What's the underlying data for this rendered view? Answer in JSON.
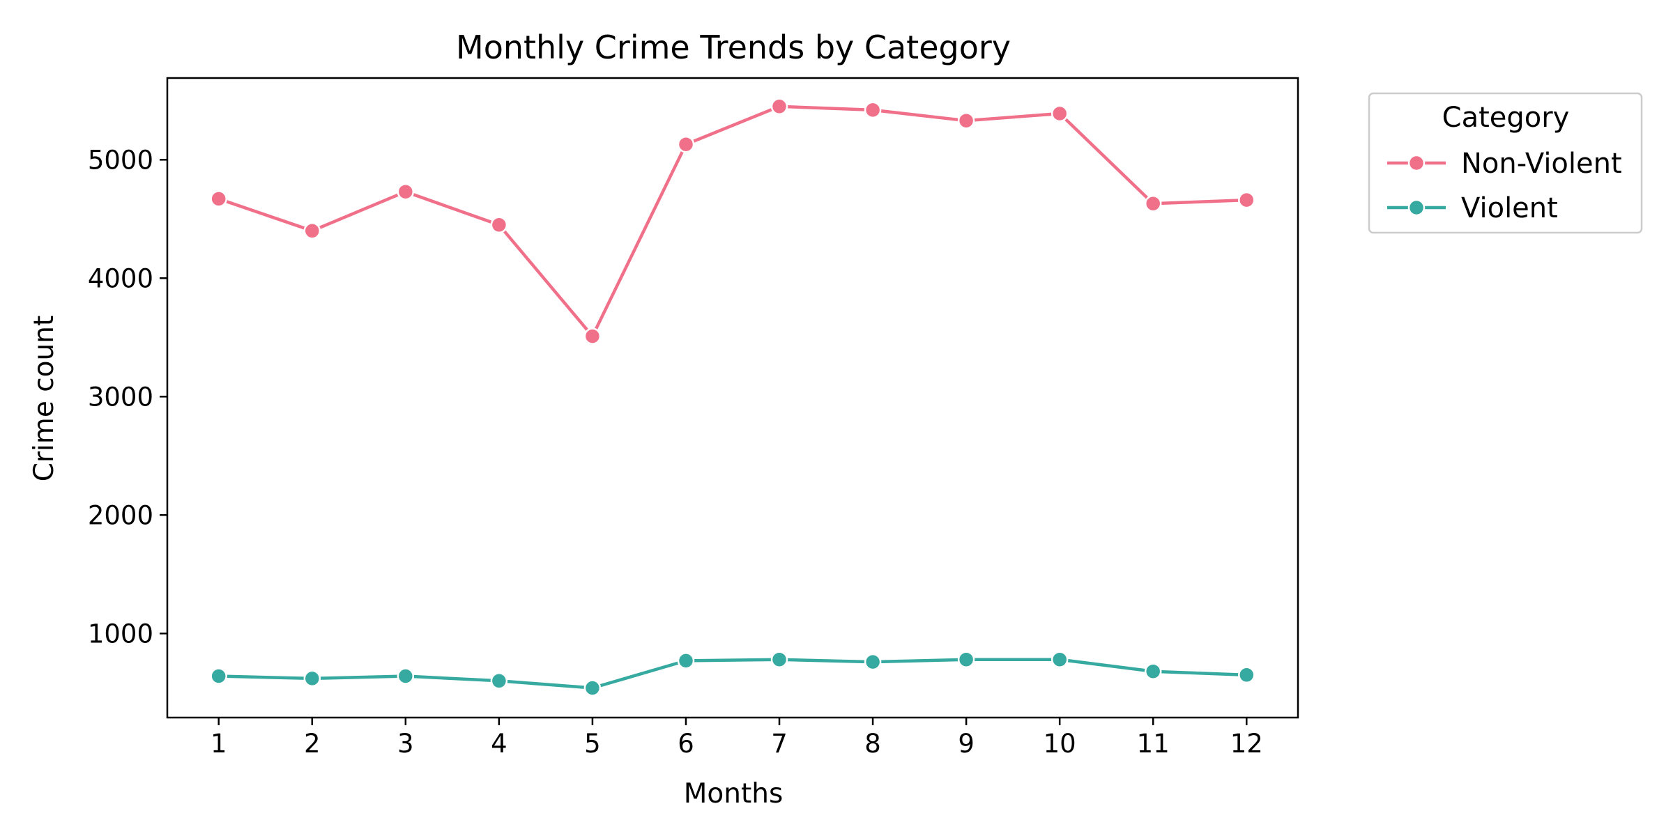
{
  "chart_data": {
    "type": "line",
    "title": "Monthly Crime Trends by Category",
    "xlabel": "Months",
    "ylabel": "Crime count",
    "x": [
      1,
      2,
      3,
      4,
      5,
      6,
      7,
      8,
      9,
      10,
      11,
      12
    ],
    "xlim": [
      0.45,
      12.55
    ],
    "ylim": [
      290,
      5690
    ],
    "yticks": [
      1000,
      2000,
      3000,
      4000,
      5000
    ],
    "grid": false,
    "legend": {
      "title": "Category",
      "placement": "outside-top-right"
    },
    "series": [
      {
        "name": "Non-Violent",
        "color": "#f0708a",
        "marker": "circle",
        "values": [
          4670,
          4400,
          4730,
          4450,
          3510,
          5130,
          5450,
          5420,
          5330,
          5390,
          4630,
          4660
        ]
      },
      {
        "name": "Violent",
        "color": "#36aaa0",
        "marker": "circle",
        "values": [
          640,
          620,
          640,
          600,
          540,
          770,
          780,
          760,
          780,
          780,
          680,
          650
        ]
      }
    ]
  }
}
